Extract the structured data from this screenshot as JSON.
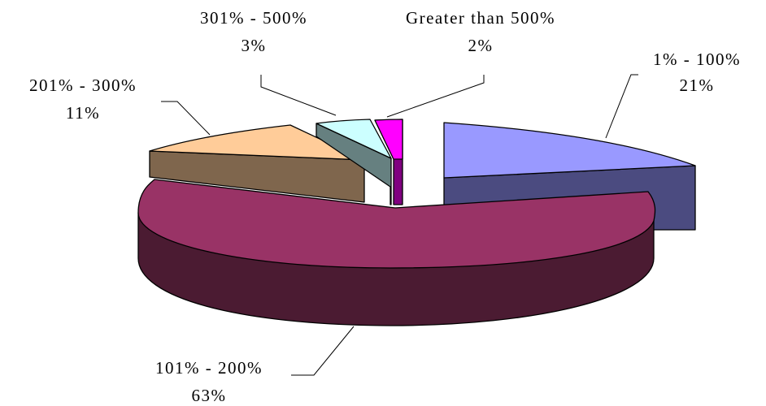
{
  "chart_data": {
    "type": "pie",
    "title": "",
    "slices": [
      {
        "label": "1% - 100%",
        "value_label": "21%",
        "value": 21,
        "color": "#9999ff",
        "side_color": "#4b4b80"
      },
      {
        "label": "101% - 200%",
        "value_label": "63%",
        "value": 63,
        "color": "#993366",
        "side_color": "#4b1b32"
      },
      {
        "label": "201% - 300%",
        "value_label": "11%",
        "value": 11,
        "color": "#ffcc99",
        "side_color": "#7f664d"
      },
      {
        "label": "301% - 500%",
        "value_label": "3%",
        "value": 3,
        "color": "#ccffff",
        "side_color": "#668080"
      },
      {
        "label": "Greater than 500%",
        "value_label": "2%",
        "value": 2,
        "color": "#ff00ff",
        "side_color": "#800080"
      }
    ],
    "style": "3d-exploded",
    "legend": "none"
  }
}
